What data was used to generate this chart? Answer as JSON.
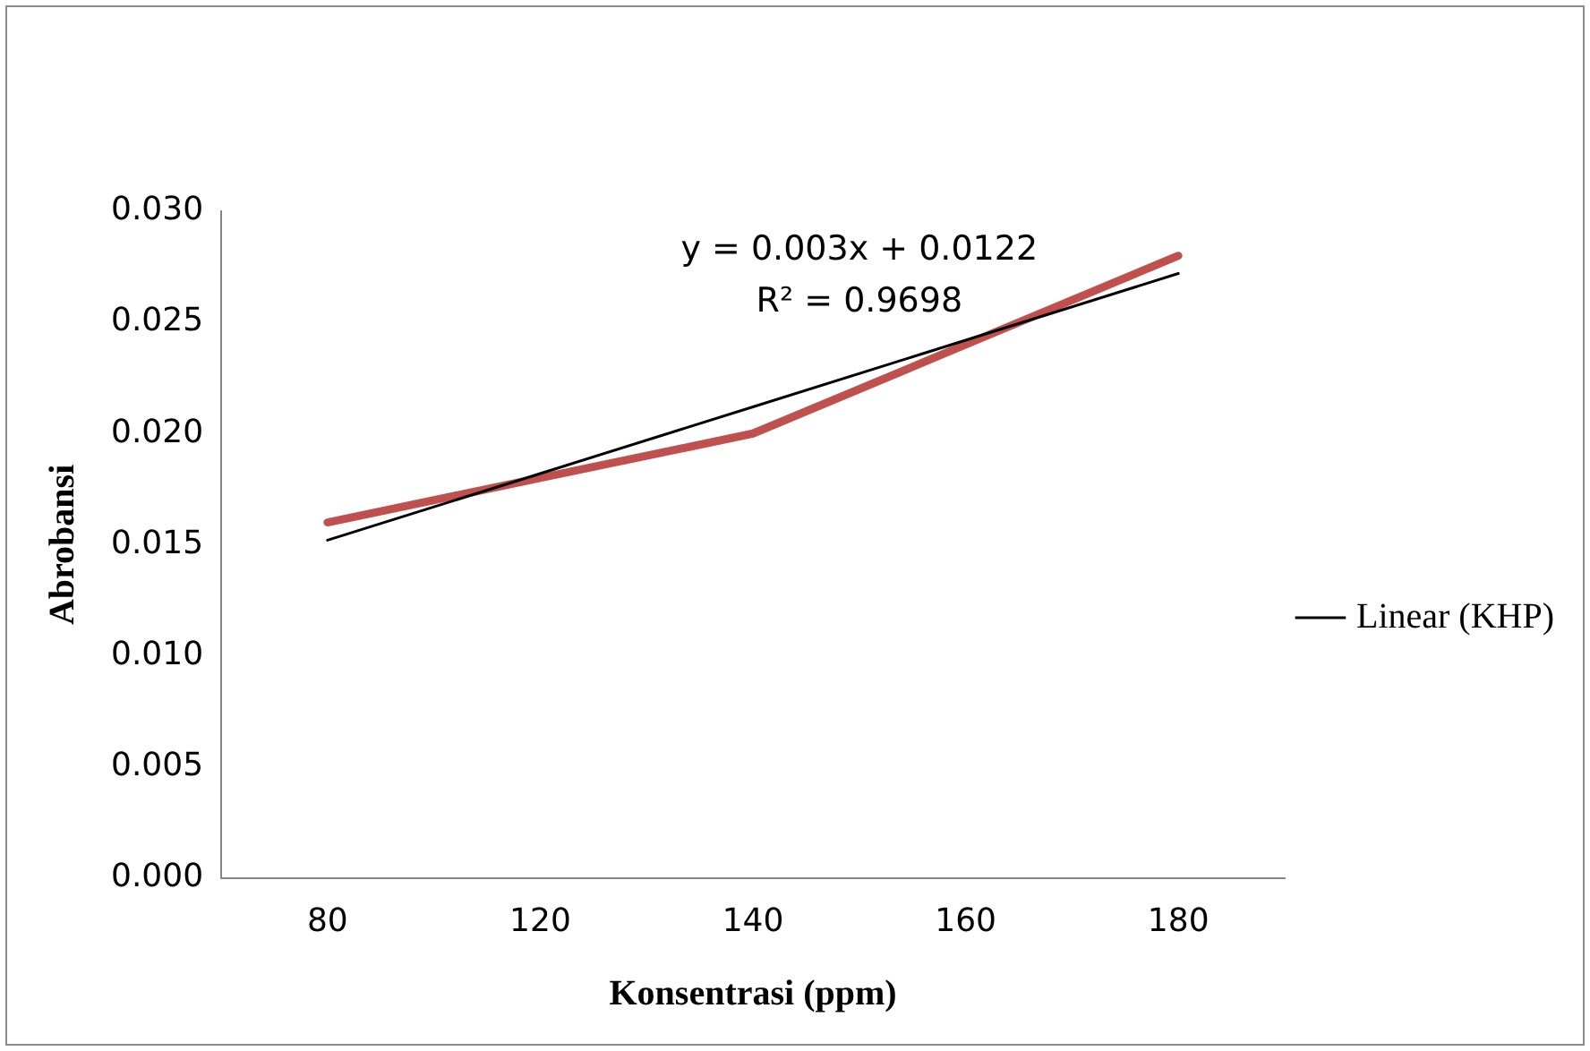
{
  "chart_data": {
    "type": "line",
    "xlabel": "Konsentrasi (ppm)",
    "ylabel": "Abrobansi",
    "categories": [
      "80",
      "120",
      "140",
      "160",
      "180"
    ],
    "series": [
      {
        "color": "#c0504d",
        "values": [
          0.016,
          0.018,
          0.02,
          0.024,
          0.028
        ]
      },
      {
        "name": "Linear (KHP)",
        "type": "line",
        "color": "#000000",
        "values": [
          0.0152,
          0.0182,
          0.0212,
          0.0242,
          0.0272
        ]
      }
    ],
    "ylim": [
      0,
      0.03
    ],
    "yticks": [
      {
        "value": 0,
        "label": "0.000"
      },
      {
        "value": 0.005,
        "label": "0.005"
      },
      {
        "value": 0.01,
        "label": "0.010"
      },
      {
        "value": 0.015,
        "label": "0.015"
      },
      {
        "value": 0.02,
        "label": "0.020"
      },
      {
        "value": 0.025,
        "label": "0.025"
      },
      {
        "value": 0.03,
        "label": "0.030"
      }
    ],
    "annotations": [
      "y = 0.003x + 0.0122",
      "R² = 0.9698"
    ],
    "legend": "right",
    "marker": "none"
  }
}
